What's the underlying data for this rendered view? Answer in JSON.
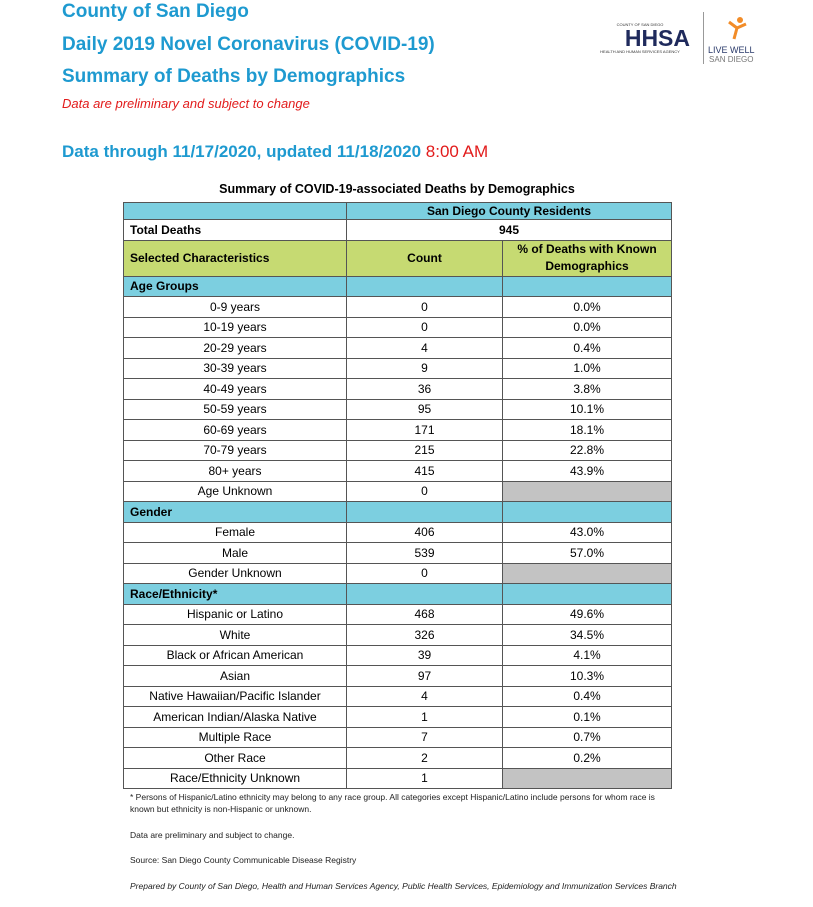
{
  "header": {
    "title_lines": [
      "County of San Diego",
      "Daily 2019 Novel Coronavirus (COVID-19)",
      "Summary of Deaths by Demographics"
    ],
    "disclaimer": "Data are preliminary and subject to change",
    "data_through": "Data through 11/17/2020, updated 11/18/2020",
    "time": "8:00 AM"
  },
  "logo": {
    "county": "COUNTY OF SAN DIEGO",
    "name": "HHSA",
    "agency": "HEALTH AND HUMAN SERVICES AGENCY",
    "live_well": "LIVE WELL",
    "san_diego": "SAN DIEGO"
  },
  "table": {
    "title": "Summary of COVID-19-associated Deaths by Demographics",
    "residents_header": "San Diego County Residents",
    "total_label": "Total Deaths",
    "total_value": 945,
    "col_headers": [
      "Selected Characteristics",
      "Count",
      "% of Deaths with Known Demographics"
    ],
    "sections": [
      {
        "name": "Age Groups",
        "rows": [
          [
            "0-9 years",
            0,
            "0.0%"
          ],
          [
            "10-19 years",
            0,
            "0.0%"
          ],
          [
            "20-29 years",
            4,
            "0.4%"
          ],
          [
            "30-39 years",
            9,
            "1.0%"
          ],
          [
            "40-49 years",
            36,
            "3.8%"
          ],
          [
            "50-59 years",
            95,
            "10.1%"
          ],
          [
            "60-69 years",
            171,
            "18.1%"
          ],
          [
            "70-79 years",
            215,
            "22.8%"
          ],
          [
            "80+ years",
            415,
            "43.9%"
          ],
          [
            "Age Unknown",
            0,
            null
          ]
        ]
      },
      {
        "name": "Gender",
        "rows": [
          [
            "Female",
            406,
            "43.0%"
          ],
          [
            "Male",
            539,
            "57.0%"
          ],
          [
            "Gender Unknown",
            0,
            null
          ]
        ]
      },
      {
        "name": "Race/Ethnicity*",
        "rows": [
          [
            "Hispanic or Latino",
            468,
            "49.6%"
          ],
          [
            "White",
            326,
            "34.5%"
          ],
          [
            "Black or African American",
            39,
            "4.1%"
          ],
          [
            "Asian",
            97,
            "10.3%"
          ],
          [
            "Native Hawaiian/Pacific Islander",
            4,
            "0.4%"
          ],
          [
            "American Indian/Alaska Native",
            1,
            "0.1%"
          ],
          [
            "Multiple Race",
            7,
            "0.7%"
          ],
          [
            "Other Race",
            2,
            "0.2%"
          ],
          [
            "Race/Ethnicity Unknown",
            1,
            null
          ]
        ]
      }
    ]
  },
  "notes": [
    "* Persons of Hispanic/Latino ethnicity may belong to any race group. All categories except Hispanic/Latino include persons for whom race is known but ethnicity is non-Hispanic or unknown.",
    "Data are preliminary and subject to change.",
    "Source: San Diego County Communicable Disease Registry",
    "Prepared by County of San Diego, Health and Human Services Agency, Public Health Services, Epidemiology and Immunization Services Branch"
  ]
}
